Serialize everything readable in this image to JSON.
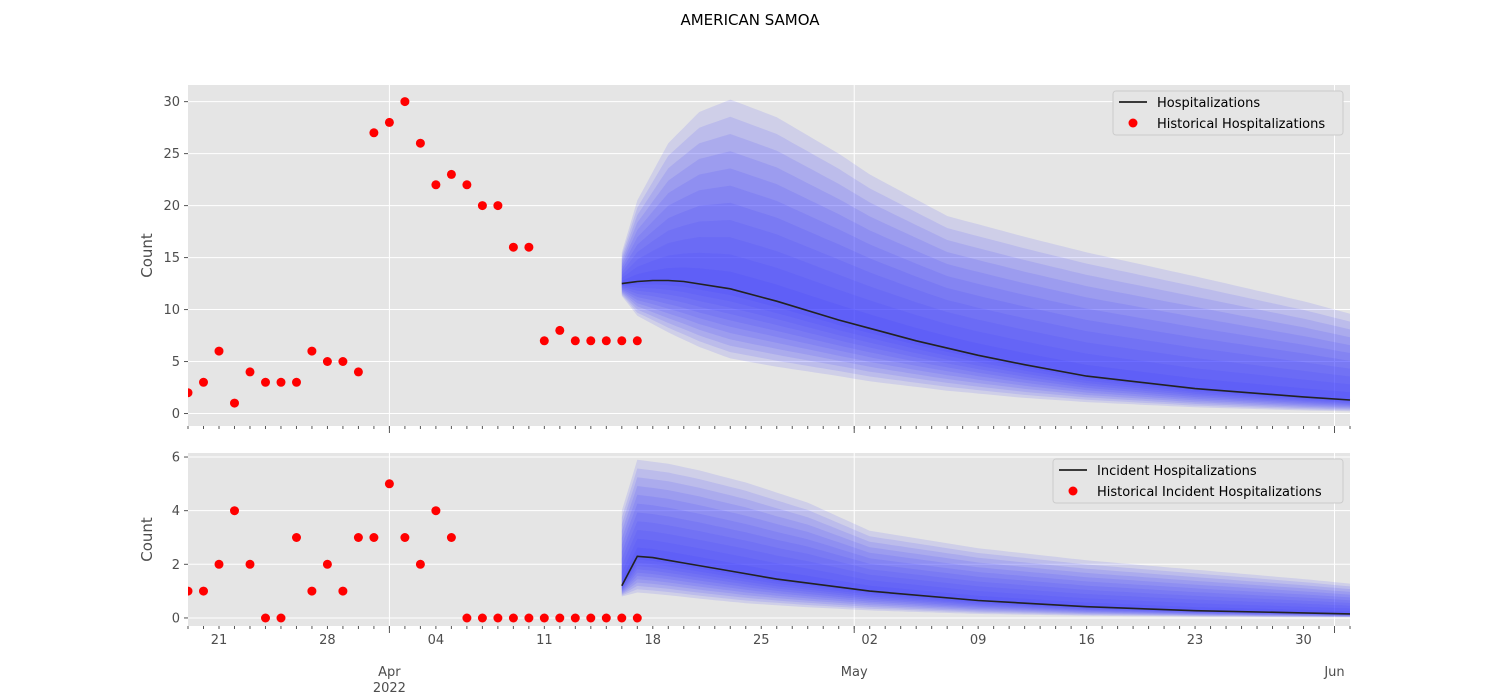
{
  "figure": {
    "title": "AMERICAN SAMOA"
  },
  "colors": {
    "background": "#e5e5e5",
    "grid": "#ffffff",
    "median": "#222222",
    "observed": "#ff0000",
    "band": "#4040ff"
  },
  "x_axis": {
    "day_ticks": [
      {
        "date": "2022-03-21",
        "label": "21"
      },
      {
        "date": "2022-03-28",
        "label": "28"
      },
      {
        "date": "2022-04-04",
        "label": "04"
      },
      {
        "date": "2022-04-11",
        "label": "11"
      },
      {
        "date": "2022-04-18",
        "label": "18"
      },
      {
        "date": "2022-04-25",
        "label": "25"
      },
      {
        "date": "2022-05-02",
        "label": "02"
      },
      {
        "date": "2022-05-09",
        "label": "09"
      },
      {
        "date": "2022-05-16",
        "label": "16"
      },
      {
        "date": "2022-05-23",
        "label": "23"
      },
      {
        "date": "2022-05-30",
        "label": "30"
      }
    ],
    "month_ticks": [
      {
        "date": "2022-04-01",
        "label": "Apr",
        "sublabel": "2022"
      },
      {
        "date": "2022-05-01",
        "label": "May",
        "sublabel": ""
      },
      {
        "date": "2022-06-01",
        "label": "Jun",
        "sublabel": ""
      }
    ],
    "range": [
      "2022-03-19",
      "2022-06-02"
    ]
  },
  "chart_data": [
    {
      "type": "line",
      "ylabel": "Count",
      "ylim": [
        -1.2,
        31.6
      ],
      "yticks": [
        0,
        5,
        10,
        15,
        20,
        25,
        30
      ],
      "grid": true,
      "legend_position": "top-right",
      "legend": [
        "Hospitalizations",
        "Historical Hospitalizations"
      ],
      "series": [
        {
          "name": "Historical Hospitalizations",
          "kind": "scatter",
          "start_date": "2022-03-19",
          "values": [
            2,
            3,
            6,
            1,
            4,
            3,
            3,
            3,
            6,
            5,
            5,
            4,
            27,
            28,
            30,
            26,
            22,
            23,
            22,
            20,
            20,
            16,
            16,
            7,
            8,
            7,
            7,
            7,
            7,
            7
          ]
        },
        {
          "name": "Hospitalizations",
          "kind": "line",
          "x": [
            "2022-04-16",
            "2022-04-17",
            "2022-04-18",
            "2022-04-19",
            "2022-04-20",
            "2022-04-23",
            "2022-04-26",
            "2022-04-30",
            "2022-05-02",
            "2022-05-05",
            "2022-05-09",
            "2022-05-12",
            "2022-05-16",
            "2022-05-23",
            "2022-05-30",
            "2022-06-02"
          ],
          "values": [
            12.5,
            12.7,
            12.8,
            12.8,
            12.7,
            12.0,
            10.8,
            9.0,
            8.2,
            7.0,
            5.6,
            4.7,
            3.6,
            2.4,
            1.6,
            1.3
          ]
        }
      ],
      "uncertainty_band": {
        "x": [
          "2022-04-16",
          "2022-04-17",
          "2022-04-19",
          "2022-04-21",
          "2022-04-23",
          "2022-04-26",
          "2022-04-30",
          "2022-05-02",
          "2022-05-07",
          "2022-05-12",
          "2022-05-16",
          "2022-05-23",
          "2022-05-30",
          "2022-06-02"
        ],
        "upper": [
          15.5,
          20.5,
          26,
          29,
          30.2,
          28.5,
          25,
          23,
          19,
          17,
          15.5,
          13.2,
          10.8,
          9.6
        ],
        "lower": [
          11.3,
          9.4,
          7.8,
          6.4,
          5.3,
          4.5,
          3.6,
          3.1,
          2.2,
          1.5,
          1.1,
          0.6,
          0.3,
          0.2
        ]
      }
    },
    {
      "type": "line",
      "ylabel": "Count",
      "ylim": [
        -0.3,
        6.15
      ],
      "yticks": [
        0,
        2,
        4,
        6
      ],
      "grid": true,
      "legend_position": "top-right",
      "legend": [
        "Incident Hospitalizations",
        "Historical Incident Hospitalizations"
      ],
      "series": [
        {
          "name": "Historical Incident Hospitalizations",
          "kind": "scatter",
          "start_date": "2022-03-19",
          "values": [
            1,
            1,
            2,
            4,
            2,
            0,
            0,
            3,
            1,
            2,
            1,
            3,
            3,
            5,
            3,
            2,
            4,
            3,
            0,
            0,
            0,
            0,
            0,
            0,
            0,
            0,
            0,
            0,
            0,
            0
          ]
        },
        {
          "name": "Incident Hospitalizations",
          "kind": "line",
          "x": [
            "2022-04-16",
            "2022-04-17",
            "2022-04-18",
            "2022-04-19",
            "2022-04-20",
            "2022-04-23",
            "2022-04-26",
            "2022-04-30",
            "2022-05-02",
            "2022-05-09",
            "2022-05-16",
            "2022-05-23",
            "2022-05-30",
            "2022-06-02"
          ],
          "values": [
            1.2,
            2.3,
            2.25,
            2.15,
            2.05,
            1.75,
            1.45,
            1.15,
            1.0,
            0.65,
            0.42,
            0.27,
            0.19,
            0.15
          ]
        }
      ],
      "uncertainty_band": {
        "x": [
          "2022-04-16",
          "2022-04-17",
          "2022-04-19",
          "2022-04-21",
          "2022-04-24",
          "2022-04-28",
          "2022-05-02",
          "2022-05-09",
          "2022-05-16",
          "2022-05-23",
          "2022-05-30",
          "2022-06-02"
        ],
        "upper": [
          4.0,
          5.9,
          5.75,
          5.5,
          5.05,
          4.3,
          3.25,
          2.6,
          2.15,
          1.8,
          1.45,
          1.28
        ],
        "lower": [
          0.8,
          0.95,
          0.85,
          0.72,
          0.55,
          0.4,
          0.28,
          0.15,
          0.08,
          0.05,
          0.03,
          0.02
        ]
      }
    }
  ]
}
